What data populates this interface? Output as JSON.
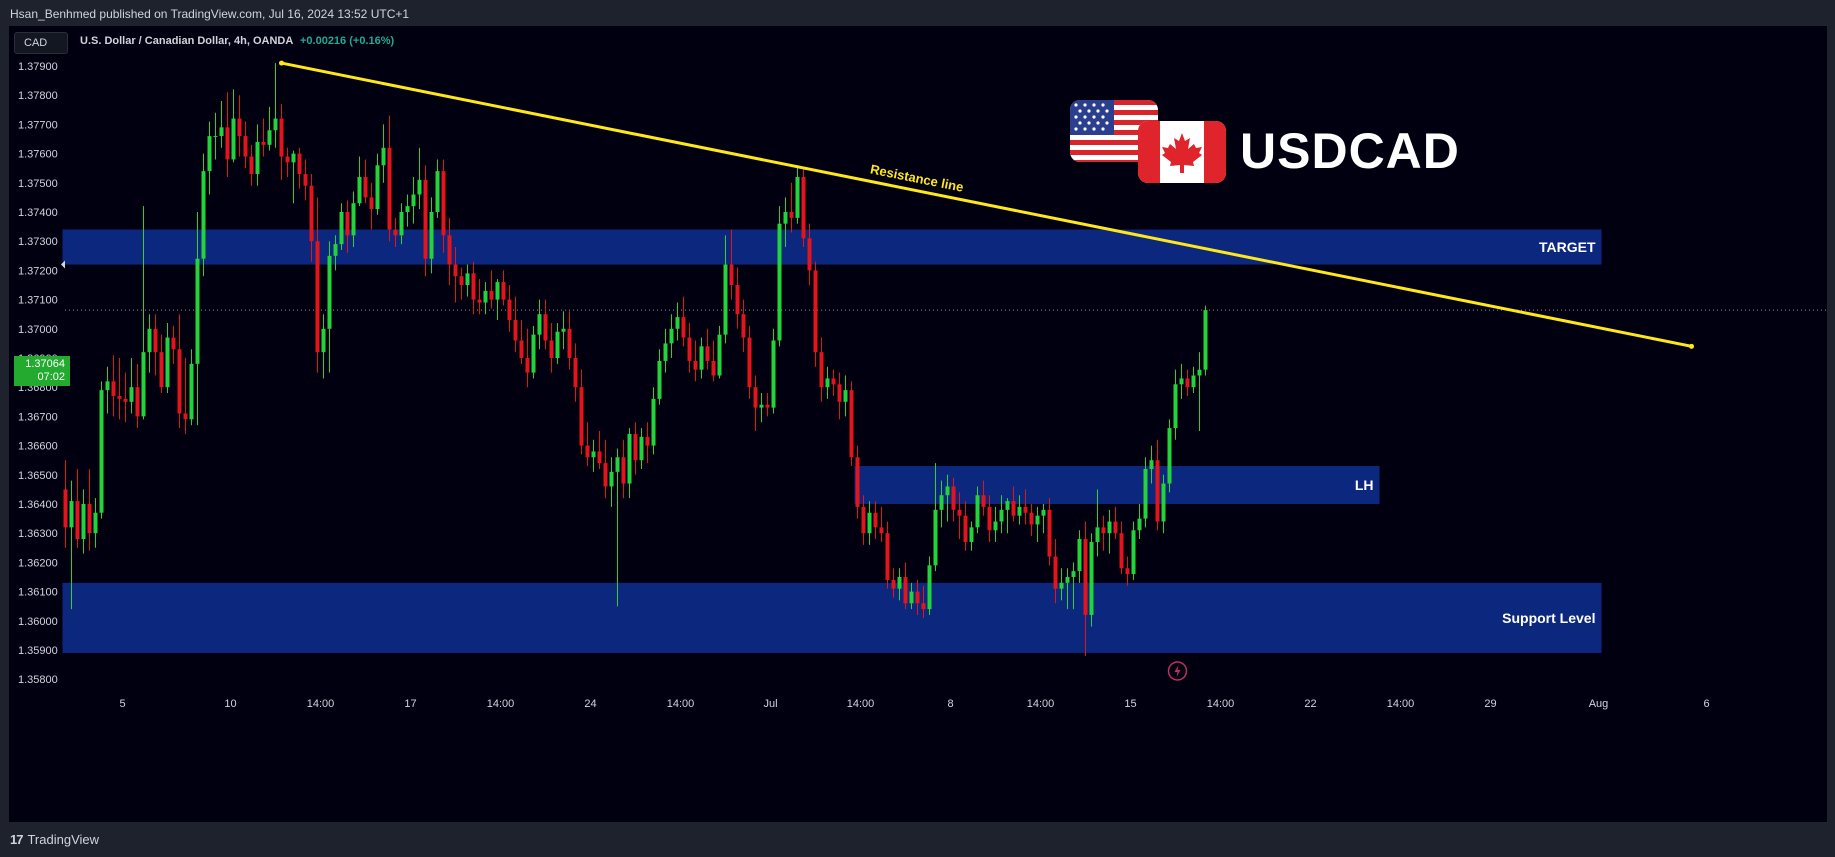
{
  "publish_header": "Hsan_Benhmed published on TradingView.com, Jul 16, 2024 13:52 UTC+1",
  "currency_badge": "CAD",
  "symbol": {
    "name": "U.S. Dollar / Canadian Dollar, 4h, OANDA",
    "change": "+0.00216 (+0.16%)"
  },
  "last_price": {
    "value": "1.37064",
    "countdown": "07:02"
  },
  "pair_title": "USDCAD",
  "footer_brand": "TradingView",
  "colors": {
    "background": "#000010",
    "up": "#22d33a",
    "down": "#e2141c",
    "zone": "#0d2a85",
    "resistance": "#ffe81a",
    "axis_text": "#d1d4dc"
  },
  "chart_data": {
    "type": "candlestick",
    "timeframe": "4h",
    "ylim": [
      1.3584,
      1.3794
    ],
    "y_ticks": [
      1.358,
      1.359,
      1.36,
      1.361,
      1.362,
      1.363,
      1.364,
      1.365,
      1.366,
      1.367,
      1.368,
      1.369,
      1.37,
      1.371,
      1.372,
      1.373,
      1.374,
      1.375,
      1.376,
      1.377,
      1.378,
      1.379
    ],
    "y_tick_labels": [
      "1.35800",
      "1.35900",
      "1.36000",
      "1.36100",
      "1.36200",
      "1.36300",
      "1.36400",
      "1.36500",
      "1.36600",
      "1.36700",
      "1.36800",
      "1.36900",
      "1.37000",
      "1.37100",
      "1.37200",
      "1.37300",
      "1.37400",
      "1.37500",
      "1.37600",
      "1.37700",
      "1.37800",
      "1.37900"
    ],
    "x_ticks": [
      {
        "label": "5",
        "bar": 9.5
      },
      {
        "label": "10",
        "bar": 27.5
      },
      {
        "label": "14:00",
        "bar": 42.5
      },
      {
        "label": "17",
        "bar": 57.5
      },
      {
        "label": "14:00",
        "bar": 72.5
      },
      {
        "label": "24",
        "bar": 87.5
      },
      {
        "label": "14:00",
        "bar": 102.5
      },
      {
        "label": "Jul",
        "bar": 117.5
      },
      {
        "label": "14:00",
        "bar": 132.5
      },
      {
        "label": "8",
        "bar": 147.5
      },
      {
        "label": "14:00",
        "bar": 162.5
      },
      {
        "label": "15",
        "bar": 177.5
      },
      {
        "label": "14:00",
        "bar": 192.5
      },
      {
        "label": "22",
        "bar": 207.5
      },
      {
        "label": "14:00",
        "bar": 222.5
      },
      {
        "label": "29",
        "bar": 237.5
      },
      {
        "label": "Aug",
        "bar": 255.5
      },
      {
        "label": "6",
        "bar": 273.5
      }
    ],
    "candles": [
      [
        1.3645,
        1.3655,
        1.3625,
        1.3632
      ],
      [
        1.3632,
        1.3648,
        1.3604,
        1.3641
      ],
      [
        1.3641,
        1.3652,
        1.3625,
        1.3628
      ],
      [
        1.3628,
        1.3645,
        1.3623,
        1.364
      ],
      [
        1.364,
        1.3652,
        1.3624,
        1.363
      ],
      [
        1.363,
        1.3642,
        1.3625,
        1.3637
      ],
      [
        1.3637,
        1.3682,
        1.3635,
        1.3679
      ],
      [
        1.3679,
        1.3687,
        1.3671,
        1.3682
      ],
      [
        1.3682,
        1.3691,
        1.367,
        1.3677
      ],
      [
        1.3677,
        1.369,
        1.3669,
        1.3676
      ],
      [
        1.3676,
        1.3685,
        1.3668,
        1.3675
      ],
      [
        1.3675,
        1.369,
        1.3671,
        1.368
      ],
      [
        1.368,
        1.3688,
        1.3666,
        1.367
      ],
      [
        1.367,
        1.3742,
        1.3669,
        1.3692
      ],
      [
        1.3692,
        1.3705,
        1.3685,
        1.37
      ],
      [
        1.37,
        1.3705,
        1.3684,
        1.3692
      ],
      [
        1.3692,
        1.3698,
        1.3678,
        1.368
      ],
      [
        1.368,
        1.3702,
        1.3678,
        1.3697
      ],
      [
        1.3697,
        1.3701,
        1.3688,
        1.3693
      ],
      [
        1.3693,
        1.3705,
        1.3666,
        1.3671
      ],
      [
        1.3671,
        1.369,
        1.3664,
        1.3669
      ],
      [
        1.3669,
        1.3693,
        1.3667,
        1.3688
      ],
      [
        1.3688,
        1.374,
        1.3667,
        1.3724
      ],
      [
        1.3724,
        1.376,
        1.3718,
        1.3754
      ],
      [
        1.3754,
        1.3771,
        1.3746,
        1.3766
      ],
      [
        1.3766,
        1.3774,
        1.3758,
        1.3766
      ],
      [
        1.3766,
        1.3778,
        1.3762,
        1.3769
      ],
      [
        1.3769,
        1.3781,
        1.3752,
        1.3758
      ],
      [
        1.3758,
        1.3782,
        1.3757,
        1.3772
      ],
      [
        1.3772,
        1.378,
        1.3759,
        1.3766
      ],
      [
        1.3766,
        1.3771,
        1.3755,
        1.3759
      ],
      [
        1.3759,
        1.3763,
        1.3749,
        1.3753
      ],
      [
        1.3753,
        1.377,
        1.3749,
        1.3764
      ],
      [
        1.3764,
        1.3772,
        1.3759,
        1.3763
      ],
      [
        1.3763,
        1.3776,
        1.3761,
        1.3768
      ],
      [
        1.3768,
        1.3791,
        1.3762,
        1.3772
      ],
      [
        1.3772,
        1.3777,
        1.3751,
        1.3759
      ],
      [
        1.3759,
        1.3762,
        1.3752,
        1.3757
      ],
      [
        1.3757,
        1.3761,
        1.3743,
        1.376
      ],
      [
        1.376,
        1.3762,
        1.3748,
        1.3753
      ],
      [
        1.3753,
        1.3758,
        1.3744,
        1.3749
      ],
      [
        1.3749,
        1.3753,
        1.3723,
        1.373
      ],
      [
        1.373,
        1.3745,
        1.3685,
        1.3692
      ],
      [
        1.3692,
        1.3705,
        1.3683,
        1.37
      ],
      [
        1.37,
        1.373,
        1.3685,
        1.3725
      ],
      [
        1.3725,
        1.3732,
        1.372,
        1.3729
      ],
      [
        1.3729,
        1.3743,
        1.3727,
        1.374
      ],
      [
        1.374,
        1.3744,
        1.3726,
        1.3732
      ],
      [
        1.3732,
        1.3747,
        1.3728,
        1.3743
      ],
      [
        1.3743,
        1.3759,
        1.3742,
        1.3752
      ],
      [
        1.3752,
        1.3758,
        1.3743,
        1.3745
      ],
      [
        1.3745,
        1.375,
        1.3734,
        1.3741
      ],
      [
        1.3741,
        1.376,
        1.3739,
        1.3756
      ],
      [
        1.3756,
        1.377,
        1.375,
        1.3762
      ],
      [
        1.3762,
        1.3773,
        1.373,
        1.3734
      ],
      [
        1.3734,
        1.3738,
        1.3728,
        1.3732
      ],
      [
        1.3732,
        1.3743,
        1.3729,
        1.374
      ],
      [
        1.374,
        1.3746,
        1.3735,
        1.3742
      ],
      [
        1.3742,
        1.3752,
        1.3736,
        1.3746
      ],
      [
        1.3746,
        1.3762,
        1.3741,
        1.3751
      ],
      [
        1.3751,
        1.3756,
        1.3718,
        1.3724
      ],
      [
        1.3724,
        1.3745,
        1.3719,
        1.374
      ],
      [
        1.374,
        1.3758,
        1.3738,
        1.3754
      ],
      [
        1.3754,
        1.3758,
        1.3726,
        1.3732
      ],
      [
        1.3732,
        1.3738,
        1.3715,
        1.3722
      ],
      [
        1.3722,
        1.3728,
        1.3709,
        1.3718
      ],
      [
        1.3718,
        1.3721,
        1.371,
        1.3715
      ],
      [
        1.3715,
        1.3722,
        1.3711,
        1.3719
      ],
      [
        1.3719,
        1.3723,
        1.3705,
        1.371
      ],
      [
        1.371,
        1.3717,
        1.3705,
        1.3709
      ],
      [
        1.3709,
        1.3716,
        1.3705,
        1.3713
      ],
      [
        1.3713,
        1.372,
        1.3707,
        1.371
      ],
      [
        1.371,
        1.3717,
        1.3703,
        1.3716
      ],
      [
        1.3716,
        1.372,
        1.3708,
        1.371
      ],
      [
        1.371,
        1.3715,
        1.3699,
        1.3703
      ],
      [
        1.3703,
        1.3711,
        1.3692,
        1.3696
      ],
      [
        1.3696,
        1.3703,
        1.3688,
        1.369
      ],
      [
        1.369,
        1.37,
        1.368,
        1.3685
      ],
      [
        1.3685,
        1.3701,
        1.3683,
        1.3698
      ],
      [
        1.3698,
        1.371,
        1.3693,
        1.3705
      ],
      [
        1.3705,
        1.371,
        1.3693,
        1.3696
      ],
      [
        1.3696,
        1.3702,
        1.3685,
        1.369
      ],
      [
        1.369,
        1.3702,
        1.3688,
        1.3699
      ],
      [
        1.3699,
        1.3706,
        1.3693,
        1.37
      ],
      [
        1.37,
        1.3706,
        1.3686,
        1.369
      ],
      [
        1.369,
        1.3695,
        1.3675,
        1.368
      ],
      [
        1.368,
        1.3686,
        1.3657,
        1.366
      ],
      [
        1.366,
        1.3668,
        1.3653,
        1.3656
      ],
      [
        1.3656,
        1.3662,
        1.3651,
        1.3658
      ],
      [
        1.3658,
        1.3665,
        1.3652,
        1.3654
      ],
      [
        1.3654,
        1.3662,
        1.3642,
        1.3646
      ],
      [
        1.3646,
        1.3656,
        1.3639,
        1.3651
      ],
      [
        1.3651,
        1.3659,
        1.3605,
        1.3656
      ],
      [
        1.3656,
        1.3662,
        1.3642,
        1.3647
      ],
      [
        1.3647,
        1.3666,
        1.3642,
        1.3664
      ],
      [
        1.3664,
        1.3668,
        1.365,
        1.3655
      ],
      [
        1.3655,
        1.3666,
        1.3652,
        1.3663
      ],
      [
        1.3663,
        1.3668,
        1.3654,
        1.366
      ],
      [
        1.366,
        1.368,
        1.3657,
        1.3676
      ],
      [
        1.3676,
        1.3693,
        1.3674,
        1.3689
      ],
      [
        1.3689,
        1.37,
        1.3685,
        1.3695
      ],
      [
        1.3695,
        1.3705,
        1.369,
        1.37
      ],
      [
        1.37,
        1.3709,
        1.3696,
        1.3704
      ],
      [
        1.3704,
        1.3711,
        1.3694,
        1.3697
      ],
      [
        1.3697,
        1.3702,
        1.3685,
        1.3689
      ],
      [
        1.3689,
        1.3696,
        1.3682,
        1.3686
      ],
      [
        1.3686,
        1.3697,
        1.3683,
        1.3694
      ],
      [
        1.3694,
        1.37,
        1.3686,
        1.3689
      ],
      [
        1.3689,
        1.3696,
        1.3682,
        1.3684
      ],
      [
        1.3684,
        1.3701,
        1.3683,
        1.3698
      ],
      [
        1.3698,
        1.3732,
        1.3695,
        1.3722
      ],
      [
        1.3722,
        1.3734,
        1.371,
        1.3715
      ],
      [
        1.3715,
        1.3721,
        1.37,
        1.3705
      ],
      [
        1.3705,
        1.371,
        1.3692,
        1.3697
      ],
      [
        1.3697,
        1.3701,
        1.3676,
        1.368
      ],
      [
        1.368,
        1.3684,
        1.3665,
        1.3673
      ],
      [
        1.3673,
        1.3678,
        1.3668,
        1.3674
      ],
      [
        1.3674,
        1.3678,
        1.367,
        1.3673
      ],
      [
        1.3673,
        1.37,
        1.3671,
        1.3696
      ],
      [
        1.3696,
        1.3742,
        1.3694,
        1.3736
      ],
      [
        1.3736,
        1.3745,
        1.3728,
        1.374
      ],
      [
        1.374,
        1.375,
        1.3733,
        1.3738
      ],
      [
        1.3738,
        1.3756,
        1.3736,
        1.3752
      ],
      [
        1.3752,
        1.3755,
        1.3728,
        1.3731
      ],
      [
        1.3731,
        1.3736,
        1.3715,
        1.372
      ],
      [
        1.372,
        1.3723,
        1.3687,
        1.3692
      ],
      [
        1.3692,
        1.3697,
        1.3675,
        1.368
      ],
      [
        1.368,
        1.3687,
        1.3676,
        1.3683
      ],
      [
        1.3683,
        1.3686,
        1.3677,
        1.3681
      ],
      [
        1.3681,
        1.3685,
        1.3669,
        1.3675
      ],
      [
        1.3675,
        1.3684,
        1.367,
        1.3679
      ],
      [
        1.3679,
        1.3682,
        1.3653,
        1.3656
      ],
      [
        1.3656,
        1.366,
        1.3635,
        1.3639
      ],
      [
        1.3639,
        1.3643,
        1.3626,
        1.363
      ],
      [
        1.363,
        1.3641,
        1.3626,
        1.3637
      ],
      [
        1.3637,
        1.3641,
        1.3628,
        1.3632
      ],
      [
        1.3632,
        1.3639,
        1.3627,
        1.363
      ],
      [
        1.363,
        1.3634,
        1.3611,
        1.3614
      ],
      [
        1.3614,
        1.3618,
        1.3608,
        1.3611
      ],
      [
        1.3611,
        1.3618,
        1.3607,
        1.3615
      ],
      [
        1.3615,
        1.362,
        1.3604,
        1.3606
      ],
      [
        1.3606,
        1.3613,
        1.3604,
        1.361
      ],
      [
        1.361,
        1.3614,
        1.3602,
        1.3606
      ],
      [
        1.3606,
        1.3612,
        1.3601,
        1.3604
      ],
      [
        1.3604,
        1.3622,
        1.3602,
        1.3619
      ],
      [
        1.3619,
        1.3654,
        1.3617,
        1.3638
      ],
      [
        1.3638,
        1.3648,
        1.3632,
        1.3643
      ],
      [
        1.3643,
        1.365,
        1.3634,
        1.3646
      ],
      [
        1.3646,
        1.3649,
        1.3634,
        1.3638
      ],
      [
        1.3638,
        1.3644,
        1.3628,
        1.3636
      ],
      [
        1.3636,
        1.3641,
        1.3624,
        1.3627
      ],
      [
        1.3627,
        1.3634,
        1.3624,
        1.3632
      ],
      [
        1.3632,
        1.3646,
        1.363,
        1.3643
      ],
      [
        1.3643,
        1.3648,
        1.3636,
        1.3639
      ],
      [
        1.3639,
        1.3643,
        1.3627,
        1.3631
      ],
      [
        1.3631,
        1.3639,
        1.3627,
        1.3634
      ],
      [
        1.3634,
        1.3643,
        1.363,
        1.3638
      ],
      [
        1.3638,
        1.3642,
        1.363,
        1.3641
      ],
      [
        1.3641,
        1.3646,
        1.3634,
        1.3636
      ],
      [
        1.3636,
        1.3643,
        1.3633,
        1.3639
      ],
      [
        1.3639,
        1.3645,
        1.3633,
        1.3637
      ],
      [
        1.3637,
        1.364,
        1.3629,
        1.3633
      ],
      [
        1.3633,
        1.3639,
        1.3627,
        1.3636
      ],
      [
        1.3636,
        1.364,
        1.363,
        1.3638
      ],
      [
        1.3638,
        1.3642,
        1.3619,
        1.3622
      ],
      [
        1.3622,
        1.3628,
        1.3606,
        1.3611
      ],
      [
        1.3611,
        1.3618,
        1.3607,
        1.3613
      ],
      [
        1.3613,
        1.3618,
        1.3604,
        1.3615
      ],
      [
        1.3615,
        1.362,
        1.3604,
        1.3617
      ],
      [
        1.3617,
        1.3631,
        1.3613,
        1.3628
      ],
      [
        1.3628,
        1.3634,
        1.3588,
        1.3602
      ],
      [
        1.3602,
        1.363,
        1.3598,
        1.3627
      ],
      [
        1.3627,
        1.3645,
        1.3622,
        1.3632
      ],
      [
        1.3632,
        1.3636,
        1.3624,
        1.363
      ],
      [
        1.363,
        1.3638,
        1.3623,
        1.3634
      ],
      [
        1.3634,
        1.3639,
        1.3628,
        1.363
      ],
      [
        1.363,
        1.3634,
        1.3616,
        1.3618
      ],
      [
        1.3618,
        1.3622,
        1.3612,
        1.3616
      ],
      [
        1.3616,
        1.3634,
        1.3614,
        1.3631
      ],
      [
        1.3631,
        1.364,
        1.3628,
        1.3635
      ],
      [
        1.3635,
        1.3656,
        1.3632,
        1.3652
      ],
      [
        1.3652,
        1.366,
        1.3647,
        1.3655
      ],
      [
        1.3655,
        1.3662,
        1.3631,
        1.3634
      ],
      [
        1.3634,
        1.365,
        1.363,
        1.3647
      ],
      [
        1.3647,
        1.3669,
        1.3644,
        1.3666
      ],
      [
        1.3666,
        1.3686,
        1.3662,
        1.3681
      ],
      [
        1.3681,
        1.3688,
        1.3676,
        1.3683
      ],
      [
        1.3683,
        1.3686,
        1.3677,
        1.368
      ],
      [
        1.368,
        1.3687,
        1.3678,
        1.3684
      ],
      [
        1.3684,
        1.3692,
        1.3665,
        1.3686
      ],
      [
        1.3686,
        1.3708,
        1.3684,
        1.37064
      ]
    ],
    "zones": [
      {
        "label": "TARGET",
        "y_low": 1.3722,
        "y_high": 1.3734,
        "bar_start": 0,
        "bar_end": 256
      },
      {
        "label": "LH",
        "y_low": 1.364,
        "y_high": 1.3653,
        "bar_start": 132,
        "bar_end": 219
      },
      {
        "label": "Support Level",
        "y_low": 1.3589,
        "y_high": 1.3613,
        "bar_start": 0,
        "bar_end": 256
      }
    ],
    "trendlines": [
      {
        "label": "Resistance line",
        "bar1": 36,
        "y1": 1.3791,
        "bar2": 271,
        "y2": 1.3694
      }
    ],
    "last_price_line": 1.37064
  }
}
